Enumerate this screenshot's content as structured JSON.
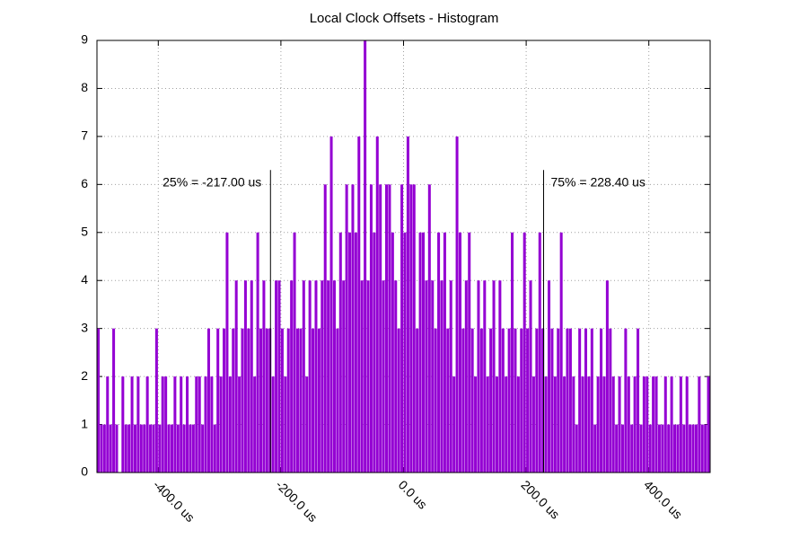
{
  "chart_data": {
    "type": "histogram",
    "title": "Local Clock Offsets - Histogram",
    "color": "#9400d3",
    "grid": true,
    "xlim": [
      -500,
      500
    ],
    "ylim": [
      0,
      9
    ],
    "xticks": [
      {
        "value": -400,
        "label": "-400.0 us"
      },
      {
        "value": -200,
        "label": "-200.0 us"
      },
      {
        "value": 0,
        "label": "0.0 us"
      },
      {
        "value": 200,
        "label": "200.0 us"
      },
      {
        "value": 400,
        "label": "400.0 us"
      }
    ],
    "yticks": [
      0,
      1,
      2,
      3,
      4,
      5,
      6,
      7,
      8,
      9
    ],
    "annotations": [
      {
        "text": "25% = -217.00 us",
        "x": -217.0
      },
      {
        "text": "75% = 228.40 us",
        "x": 228.4
      }
    ],
    "bins": [
      -500,
      -495,
      -490,
      -485,
      -480,
      -475,
      -470,
      -465,
      -460,
      -455,
      -450,
      -445,
      -440,
      -435,
      -430,
      -425,
      -420,
      -415,
      -410,
      -405,
      -400,
      -395,
      -390,
      -385,
      -380,
      -375,
      -370,
      -365,
      -360,
      -355,
      -350,
      -345,
      -340,
      -335,
      -330,
      -325,
      -320,
      -315,
      -310,
      -305,
      -300,
      -295,
      -290,
      -285,
      -280,
      -275,
      -270,
      -265,
      -260,
      -255,
      -250,
      -245,
      -240,
      -235,
      -230,
      -225,
      -220,
      -215,
      -210,
      -205,
      -200,
      -195,
      -190,
      -185,
      -180,
      -175,
      -170,
      -165,
      -160,
      -155,
      -150,
      -145,
      -140,
      -135,
      -130,
      -125,
      -120,
      -115,
      -110,
      -105,
      -100,
      -95,
      -90,
      -85,
      -80,
      -75,
      -70,
      -65,
      -60,
      -55,
      -50,
      -45,
      -40,
      -35,
      -30,
      -25,
      -20,
      -15,
      -10,
      -5,
      0,
      5,
      10,
      15,
      20,
      25,
      30,
      35,
      40,
      45,
      50,
      55,
      60,
      65,
      70,
      75,
      80,
      85,
      90,
      95,
      100,
      105,
      110,
      115,
      120,
      125,
      130,
      135,
      140,
      145,
      150,
      155,
      160,
      165,
      170,
      175,
      180,
      185,
      190,
      195,
      200,
      205,
      210,
      215,
      220,
      225,
      230,
      235,
      240,
      245,
      250,
      255,
      260,
      265,
      270,
      275,
      280,
      285,
      290,
      295,
      300,
      305,
      310,
      315,
      320,
      325,
      330,
      335,
      340,
      345,
      350,
      355,
      360,
      365,
      370,
      375,
      380,
      385,
      390,
      395,
      400,
      405,
      410,
      415,
      420,
      425,
      430,
      435,
      440,
      445,
      450,
      455,
      460,
      465,
      470,
      475,
      480,
      485,
      490,
      495,
      500
    ],
    "values": [
      3,
      1,
      1,
      2,
      1,
      3,
      1,
      0,
      2,
      1,
      1,
      2,
      1,
      2,
      1,
      1,
      2,
      1,
      1,
      3,
      1,
      2,
      2,
      1,
      1,
      2,
      1,
      2,
      1,
      2,
      1,
      1,
      2,
      2,
      1,
      2,
      3,
      2,
      1,
      3,
      2,
      3,
      5,
      2,
      3,
      4,
      2,
      3,
      4,
      3,
      4,
      2,
      5,
      3,
      4,
      3,
      3,
      2,
      4,
      4,
      3,
      2,
      3,
      4,
      5,
      3,
      3,
      4,
      2,
      4,
      3,
      4,
      3,
      4,
      6,
      4,
      7,
      4,
      3,
      5,
      4,
      6,
      5,
      6,
      5,
      7,
      4,
      9,
      4,
      6,
      5,
      7,
      6,
      4,
      6,
      6,
      5,
      4,
      3,
      6,
      5,
      7,
      6,
      6,
      3,
      5,
      5,
      4,
      6,
      4,
      3,
      5,
      4,
      5,
      3,
      4,
      2,
      7,
      5,
      3,
      4,
      5,
      3,
      2,
      4,
      3,
      4,
      2,
      3,
      4,
      2,
      4,
      3,
      2,
      3,
      5,
      3,
      2,
      3,
      5,
      3,
      4,
      2,
      3,
      5,
      3,
      2,
      4,
      3,
      2,
      3,
      5,
      2,
      3,
      3,
      2,
      1,
      3,
      2,
      3,
      2,
      3,
      1,
      2,
      3,
      2,
      4,
      3,
      2,
      1,
      2,
      1,
      3,
      2,
      1,
      2,
      3,
      1,
      2,
      2,
      1,
      2,
      2,
      1,
      1,
      2,
      1,
      2,
      1,
      1,
      2,
      1,
      2,
      1,
      1,
      1,
      2,
      1,
      1,
      2
    ]
  }
}
